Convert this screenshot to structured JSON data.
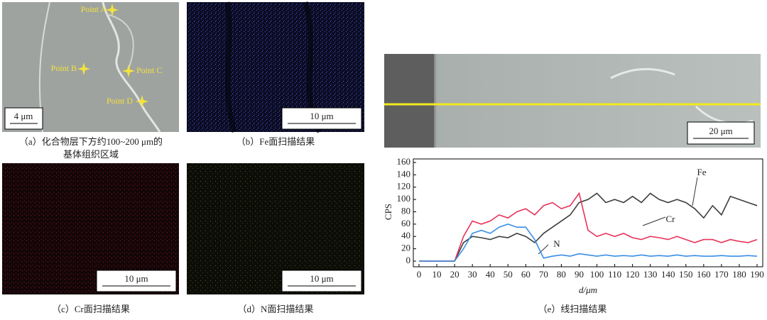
{
  "panels": [
    {
      "points": [
        "Point A",
        "Point B",
        "Point C",
        "Point D"
      ],
      "scale_bar": "4 μm",
      "caption": [
        "（a）化合物层下方约100~200 μm的",
        "基体组织区域"
      ]
    },
    {
      "scale_bar": "10 μm",
      "caption": [
        "（b）Fe面扫描结果"
      ]
    },
    {
      "scale_bar": "10 μm",
      "caption": [
        "（c）Cr面扫描结果"
      ]
    },
    {
      "scale_bar": "10 μm",
      "caption": [
        "（d）N面扫描结果"
      ]
    },
    {
      "scale_bar": "20 μm",
      "caption": [
        "（e）线扫描结果"
      ]
    }
  ],
  "chart_data": {
    "type": "line",
    "ylabel": "CPS",
    "xlabel": "d/μm",
    "x": [
      0,
      5,
      10,
      15,
      20,
      25,
      30,
      35,
      40,
      45,
      50,
      55,
      60,
      65,
      70,
      75,
      80,
      85,
      90,
      95,
      100,
      105,
      110,
      115,
      120,
      125,
      130,
      135,
      140,
      145,
      150,
      155,
      160,
      165,
      170,
      175,
      180,
      185,
      190
    ],
    "series": [
      {
        "name": "Fe",
        "color": "#3b403c",
        "values": [
          0,
          0,
          0,
          0,
          0,
          30,
          40,
          38,
          35,
          40,
          38,
          45,
          40,
          30,
          45,
          55,
          65,
          75,
          95,
          100,
          110,
          95,
          100,
          95,
          105,
          95,
          110,
          100,
          95,
          100,
          95,
          85,
          70,
          90,
          75,
          105,
          100,
          95,
          90
        ]
      },
      {
        "name": "Cr",
        "color": "#e8335a",
        "values": [
          0,
          0,
          0,
          0,
          0,
          40,
          65,
          60,
          65,
          75,
          70,
          80,
          85,
          75,
          90,
          95,
          85,
          90,
          110,
          50,
          40,
          45,
          40,
          45,
          38,
          35,
          40,
          38,
          35,
          40,
          35,
          30,
          35,
          35,
          30,
          35,
          32,
          30,
          35
        ]
      },
      {
        "name": "N",
        "color": "#3a8ee6",
        "values": [
          0,
          0,
          0,
          0,
          0,
          20,
          45,
          50,
          45,
          55,
          60,
          55,
          55,
          35,
          5,
          8,
          10,
          8,
          12,
          10,
          8,
          10,
          8,
          9,
          8,
          10,
          8,
          9,
          8,
          10,
          8,
          9,
          8,
          8,
          9,
          8,
          8,
          9,
          8
        ]
      }
    ],
    "xlim": [
      0,
      190
    ],
    "ylim": [
      0,
      160
    ],
    "xticks": [
      0,
      10,
      20,
      30,
      40,
      50,
      60,
      70,
      80,
      90,
      100,
      110,
      120,
      130,
      140,
      150,
      160,
      170,
      180,
      190
    ],
    "yticks": [
      0,
      20,
      40,
      60,
      80,
      100,
      120,
      140,
      160
    ]
  }
}
